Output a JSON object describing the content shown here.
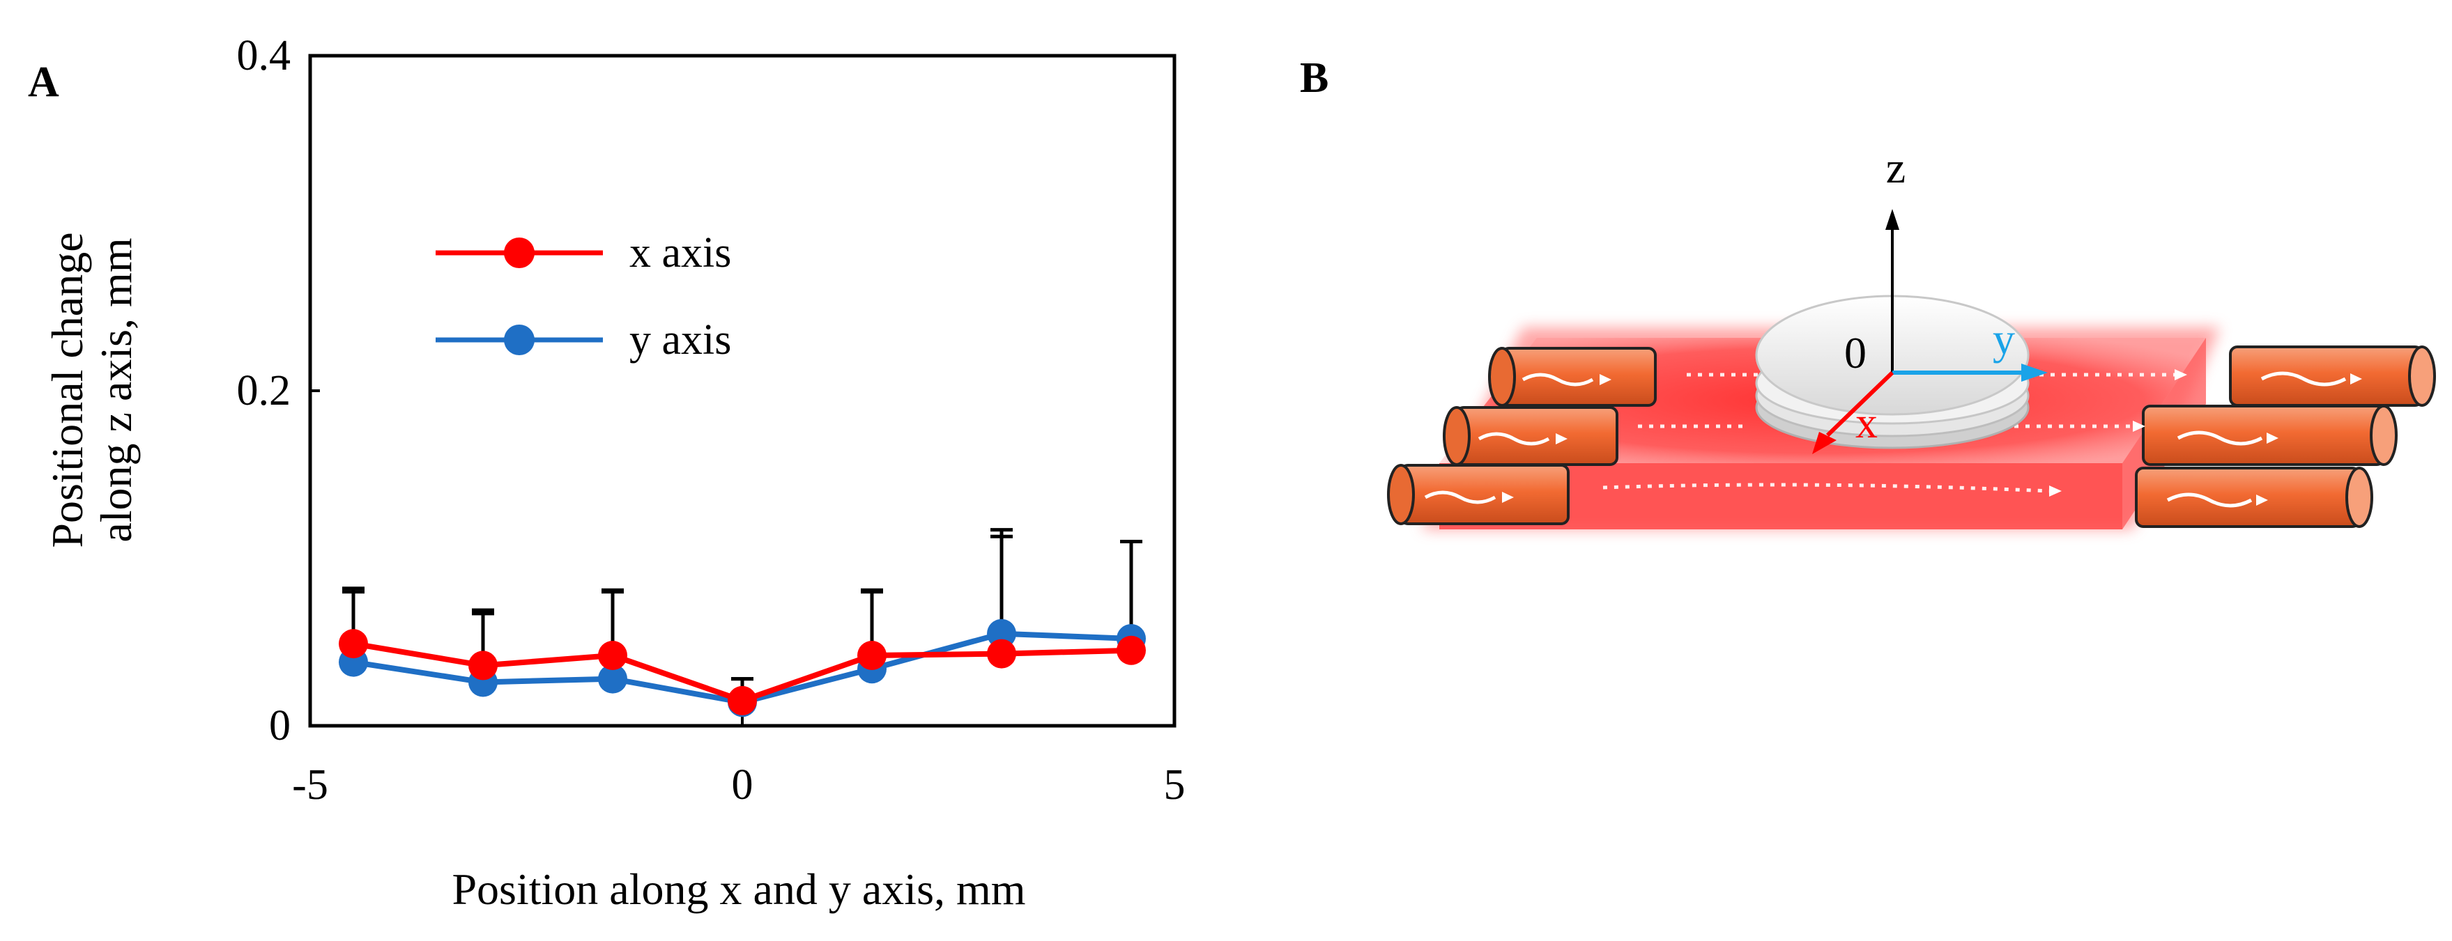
{
  "panels": {
    "a_letter": "A",
    "b_letter": "B"
  },
  "chart_data": {
    "type": "line",
    "title": "",
    "xlabel": "Position along x and y axis, mm",
    "ylabel_line1": "Positional change",
    "ylabel_line2": "along z axis, mm",
    "xlim": [
      -5,
      5
    ],
    "ylim": [
      0,
      0.4
    ],
    "xticks": [
      -5,
      0,
      5
    ],
    "xtick_labels": [
      "-5",
      "0",
      "5"
    ],
    "yticks": [
      0,
      0.2,
      0.4
    ],
    "ytick_labels": [
      "0",
      "0.2",
      "0.4"
    ],
    "legend_position": "upper-left",
    "grid": false,
    "series": [
      {
        "name": "x axis",
        "color": "#ff0000",
        "x": [
          -4.5,
          -3,
          -1.5,
          0,
          1.5,
          3,
          4.5
        ],
        "y": [
          0.049,
          0.036,
          0.042,
          0.015,
          0.042,
          0.043,
          0.045
        ],
        "error": [
          0.031,
          0.031,
          0.038,
          0.013,
          0.038,
          0.07,
          0.065
        ]
      },
      {
        "name": "y axis",
        "color": "#1f6fc5",
        "x": [
          -4.5,
          -3,
          -1.5,
          0,
          1.5,
          3,
          4.5
        ],
        "y": [
          0.038,
          0.026,
          0.028,
          0.014,
          0.034,
          0.055,
          0.052
        ],
        "error": [
          0.044,
          0.043,
          0.053,
          0.014,
          0.047,
          0.062,
          0.058
        ]
      }
    ]
  },
  "diagram": {
    "z_label": "z",
    "y_label": "y",
    "x_label": "x",
    "origin_label": "0",
    "colors": {
      "z_axis": "#000000",
      "y_axis": "#1aa3e8",
      "x_axis": "#ff0000",
      "plate": "#ff3030",
      "tube": "#f07a45"
    }
  }
}
